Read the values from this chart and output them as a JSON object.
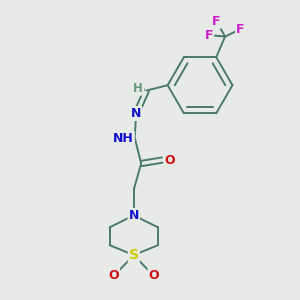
{
  "bg_color": "#e8eae8",
  "atom_colors": {
    "C": "#4a7a6a",
    "H": "#6a9a7a",
    "N": "#1010cc",
    "O": "#cc1010",
    "S": "#cccc00",
    "F": "#cc22cc"
  },
  "bond_color": "#4a7a6a",
  "font_size_atom": 9,
  "lw": 1.4
}
